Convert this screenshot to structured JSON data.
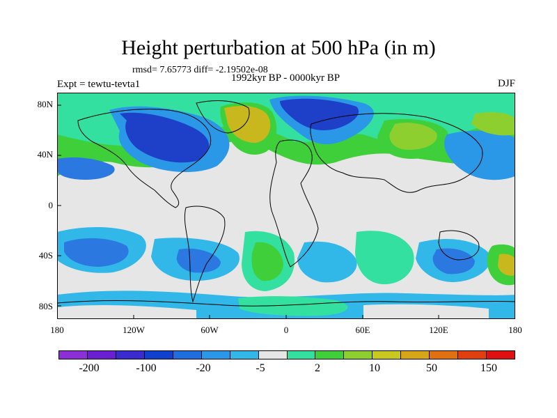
{
  "title": "Height perturbation at 500 hPa (in m)",
  "stats": "rmsd= 7.65773 diff= -2.19502e-08",
  "expt": "Expt = tewtu-tevta1",
  "period": "1992kyr BP - 0000kyr BP",
  "season": "DJF",
  "lat_labels": [
    "80N",
    "40N",
    "0",
    "40S",
    "80S"
  ],
  "lon_labels": [
    "180",
    "120W",
    "60W",
    "0",
    "60E",
    "120E",
    "180"
  ],
  "colorbar": {
    "colors": [
      "#8c2fd6",
      "#6a1fd0",
      "#3a2bd0",
      "#1040d0",
      "#1e6ee0",
      "#2a98e6",
      "#31b8e8",
      "#e6e6e6",
      "#33e0a0",
      "#3fcf3a",
      "#8ccf2f",
      "#c8c81e",
      "#d6a518",
      "#e07010",
      "#e04010",
      "#e01010"
    ],
    "labels": [
      "-200",
      "-100",
      "-20",
      "-5",
      "2",
      "10",
      "50",
      "150"
    ]
  },
  "map": {
    "background_color": "#e6e6e6",
    "colors": {
      "strong_negative": "#1e40c8",
      "negative": "#2a78e0",
      "weak_negative": "#31b8e8",
      "weak_positive": "#33e0a0",
      "positive": "#3fcf3a",
      "strong_positive": "#c8b81e"
    }
  }
}
